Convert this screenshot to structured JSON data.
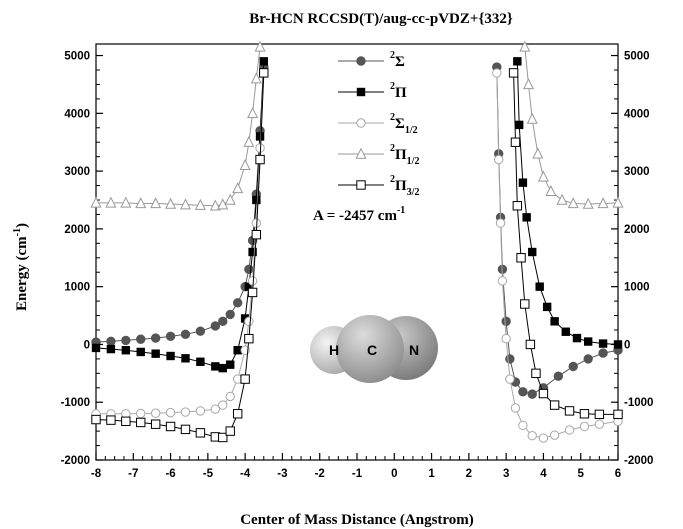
{
  "chart_data": {
    "type": "scatter",
    "title": "Br-HCN RCCSD(T)/aug-cc-pVDZ+{332}",
    "xlabel": "Center of Mass Distance (Angstrom)",
    "ylabel": "Energy (cm-1)",
    "ylabel_parts": {
      "main": "Energy (cm",
      "sup": "-1",
      "close": ")"
    },
    "xlim": [
      -8,
      6
    ],
    "ylim": [
      -2000,
      5200
    ],
    "x_ticks": [
      "-8",
      "-7",
      "-6",
      "-5",
      "-4",
      "-3",
      "-2",
      "-1",
      "0",
      "1",
      "2",
      "3",
      "4",
      "5",
      "6"
    ],
    "y_ticks_left": [
      "-2000",
      "-1000",
      "0",
      "1000",
      "2000",
      "3000",
      "4000",
      "5000"
    ],
    "y_ticks_right": [
      "-2000",
      "-1000",
      "0",
      "1000",
      "2000",
      "3000",
      "4000",
      "5000"
    ],
    "annotation": {
      "main": "A = -2457 cm",
      "sup": "-1"
    },
    "molecule_atoms": [
      "H",
      "C",
      "N"
    ],
    "series": [
      {
        "name": "2Σ",
        "label": {
          "sup": "2",
          "base": "Σ",
          "sub": ""
        },
        "marker": "circle-filled",
        "color": "#555555",
        "left": [
          [
            -8.0,
            40
          ],
          [
            -7.6,
            55
          ],
          [
            -7.2,
            70
          ],
          [
            -6.8,
            90
          ],
          [
            -6.4,
            110
          ],
          [
            -6.0,
            140
          ],
          [
            -5.6,
            175
          ],
          [
            -5.2,
            230
          ],
          [
            -4.8,
            320
          ],
          [
            -4.6,
            400
          ],
          [
            -4.4,
            520
          ],
          [
            -4.2,
            720
          ],
          [
            -4.0,
            1000
          ],
          [
            -3.9,
            1300
          ],
          [
            -3.8,
            1800
          ],
          [
            -3.7,
            2600
          ],
          [
            -3.6,
            3700
          ],
          [
            -3.5,
            4800
          ]
        ],
        "right": [
          [
            2.75,
            4800
          ],
          [
            2.8,
            3300
          ],
          [
            2.85,
            2200
          ],
          [
            2.9,
            1300
          ],
          [
            3.0,
            400
          ],
          [
            3.1,
            -250
          ],
          [
            3.25,
            -650
          ],
          [
            3.45,
            -820
          ],
          [
            3.7,
            -860
          ],
          [
            4.0,
            -750
          ],
          [
            4.4,
            -550
          ],
          [
            4.8,
            -380
          ],
          [
            5.2,
            -250
          ],
          [
            5.6,
            -150
          ],
          [
            6.0,
            -100
          ]
        ]
      },
      {
        "name": "2Π",
        "label": {
          "sup": "2",
          "base": "Π",
          "sub": ""
        },
        "marker": "square-filled",
        "color": "#000000",
        "left": [
          [
            -8.0,
            -60
          ],
          [
            -7.6,
            -80
          ],
          [
            -7.2,
            -100
          ],
          [
            -6.8,
            -130
          ],
          [
            -6.4,
            -160
          ],
          [
            -6.0,
            -200
          ],
          [
            -5.6,
            -240
          ],
          [
            -5.2,
            -300
          ],
          [
            -4.8,
            -380
          ],
          [
            -4.6,
            -410
          ],
          [
            -4.4,
            -350
          ],
          [
            -4.2,
            -100
          ],
          [
            -4.0,
            450
          ],
          [
            -3.9,
            1000
          ],
          [
            -3.8,
            1600
          ],
          [
            -3.7,
            2500
          ],
          [
            -3.6,
            3600
          ],
          [
            -3.5,
            4900
          ]
        ],
        "right": [
          [
            3.3,
            4900
          ],
          [
            3.35,
            3800
          ],
          [
            3.45,
            2800
          ],
          [
            3.55,
            2200
          ],
          [
            3.7,
            1600
          ],
          [
            3.9,
            1000
          ],
          [
            4.1,
            650
          ],
          [
            4.3,
            400
          ],
          [
            4.6,
            220
          ],
          [
            4.9,
            110
          ],
          [
            5.2,
            50
          ],
          [
            5.6,
            15
          ],
          [
            6.0,
            0
          ]
        ]
      },
      {
        "name": "2Σ1/2",
        "label": {
          "sup": "2",
          "base": "Σ",
          "sub": "1/2"
        },
        "marker": "circle-open",
        "color": "#a8a8a8",
        "left": [
          [
            -8.0,
            -1200
          ],
          [
            -7.6,
            -1200
          ],
          [
            -7.2,
            -1200
          ],
          [
            -6.8,
            -1195
          ],
          [
            -6.4,
            -1190
          ],
          [
            -6.0,
            -1180
          ],
          [
            -5.6,
            -1170
          ],
          [
            -5.2,
            -1150
          ],
          [
            -4.8,
            -1120
          ],
          [
            -4.6,
            -1050
          ],
          [
            -4.4,
            -900
          ],
          [
            -4.2,
            -600
          ],
          [
            -4.0,
            -100
          ],
          [
            -3.9,
            400
          ],
          [
            -3.8,
            1100
          ],
          [
            -3.7,
            2100
          ],
          [
            -3.6,
            3400
          ],
          [
            -3.5,
            4700
          ]
        ],
        "right": [
          [
            2.75,
            4700
          ],
          [
            2.8,
            3200
          ],
          [
            2.85,
            2100
          ],
          [
            2.9,
            1100
          ],
          [
            3.0,
            100
          ],
          [
            3.1,
            -600
          ],
          [
            3.25,
            -1100
          ],
          [
            3.45,
            -1400
          ],
          [
            3.7,
            -1580
          ],
          [
            4.0,
            -1620
          ],
          [
            4.3,
            -1570
          ],
          [
            4.7,
            -1480
          ],
          [
            5.1,
            -1420
          ],
          [
            5.5,
            -1380
          ],
          [
            6.0,
            -1330
          ]
        ]
      },
      {
        "name": "2Π1/2",
        "label": {
          "sup": "2",
          "base": "Π",
          "sub": "1/2"
        },
        "marker": "triangle-open",
        "color": "#999999",
        "left": [
          [
            -8.0,
            2450
          ],
          [
            -7.6,
            2450
          ],
          [
            -7.2,
            2450
          ],
          [
            -6.8,
            2440
          ],
          [
            -6.4,
            2440
          ],
          [
            -6.0,
            2430
          ],
          [
            -5.6,
            2420
          ],
          [
            -5.2,
            2410
          ],
          [
            -4.8,
            2400
          ],
          [
            -4.6,
            2420
          ],
          [
            -4.4,
            2500
          ],
          [
            -4.2,
            2700
          ],
          [
            -4.0,
            3100
          ],
          [
            -3.9,
            3500
          ],
          [
            -3.8,
            4000
          ],
          [
            -3.7,
            4600
          ],
          [
            -3.6,
            5150
          ]
        ],
        "right": [
          [
            3.5,
            5150
          ],
          [
            3.6,
            4500
          ],
          [
            3.7,
            3900
          ],
          [
            3.85,
            3300
          ],
          [
            4.0,
            2900
          ],
          [
            4.2,
            2650
          ],
          [
            4.5,
            2500
          ],
          [
            4.8,
            2440
          ],
          [
            5.2,
            2430
          ],
          [
            5.6,
            2440
          ],
          [
            6.0,
            2450
          ]
        ]
      },
      {
        "name": "2Π3/2",
        "label": {
          "sup": "2",
          "base": "Π",
          "sub": "3/2"
        },
        "marker": "square-open",
        "color": "#000000",
        "left": [
          [
            -8.0,
            -1300
          ],
          [
            -7.6,
            -1310
          ],
          [
            -7.2,
            -1330
          ],
          [
            -6.8,
            -1350
          ],
          [
            -6.4,
            -1380
          ],
          [
            -6.0,
            -1420
          ],
          [
            -5.6,
            -1470
          ],
          [
            -5.2,
            -1530
          ],
          [
            -4.8,
            -1600
          ],
          [
            -4.6,
            -1610
          ],
          [
            -4.4,
            -1500
          ],
          [
            -4.2,
            -1200
          ],
          [
            -4.0,
            -600
          ],
          [
            -3.9,
            100
          ],
          [
            -3.8,
            900
          ],
          [
            -3.7,
            1900
          ],
          [
            -3.6,
            3200
          ],
          [
            -3.5,
            4700
          ]
        ],
        "right": [
          [
            3.2,
            4700
          ],
          [
            3.25,
            3500
          ],
          [
            3.3,
            2400
          ],
          [
            3.4,
            1500
          ],
          [
            3.5,
            700
          ],
          [
            3.65,
            0
          ],
          [
            3.8,
            -500
          ],
          [
            4.0,
            -850
          ],
          [
            4.3,
            -1050
          ],
          [
            4.7,
            -1150
          ],
          [
            5.1,
            -1200
          ],
          [
            5.5,
            -1210
          ],
          [
            6.0,
            -1210
          ]
        ]
      }
    ]
  }
}
